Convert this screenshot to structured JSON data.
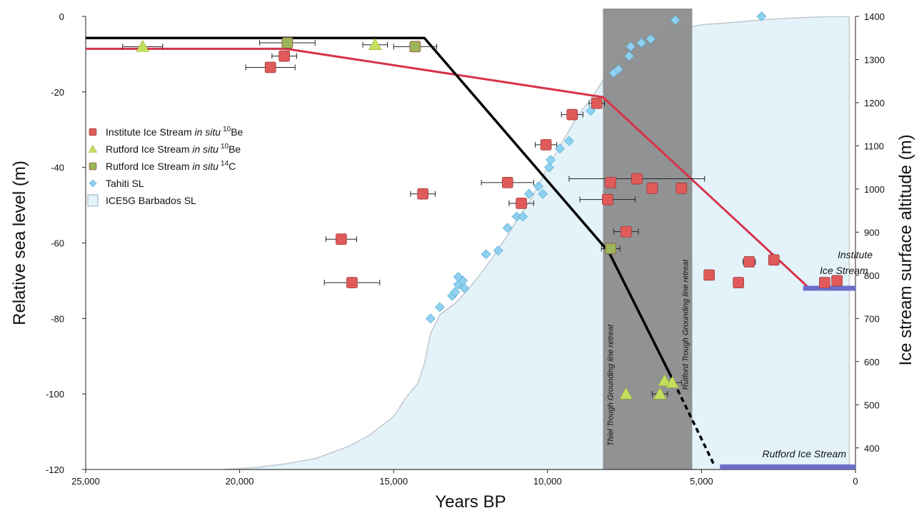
{
  "chart_data": {
    "type": "scatter",
    "xlabel": "Years BP",
    "ylabel": "Relative sea level (m)",
    "y2label": "Ice stream surface altitude (m)",
    "xlim": [
      25000,
      0
    ],
    "ylim": [
      -120,
      0
    ],
    "y2lim": [
      350,
      1400
    ],
    "xticks": [
      25000,
      20000,
      15000,
      10000,
      5000,
      0
    ],
    "xtick_labels": [
      "25,000",
      "20,000",
      "15,000",
      "10,000",
      "5,000",
      "0"
    ],
    "yticks": [
      0,
      -20,
      -40,
      -60,
      -80,
      -100,
      -120
    ],
    "y2ticks": [
      1400,
      1300,
      1200,
      1100,
      1000,
      900,
      800,
      700,
      600,
      500,
      400
    ],
    "legend": {
      "placement": "left",
      "entries": [
        {
          "key": "institute",
          "pre": "Institute Ice Stream ",
          "italic": "in situ",
          "sup": "10",
          "post": "Be"
        },
        {
          "key": "rutford_be",
          "pre": "Rutford Ice Stream ",
          "italic": "in situ",
          "sup": "10",
          "post": "Be"
        },
        {
          "key": "rutford_c",
          "pre": "Rutford Ice Stream ",
          "italic": "in situ",
          "sup": "14",
          "post": "C"
        },
        {
          "key": "tahiti",
          "pre": "Tahiti SL",
          "italic": "",
          "sup": "",
          "post": ""
        },
        {
          "key": "barbados",
          "pre": "ICE5G Barbados SL",
          "italic": "",
          "sup": "",
          "post": ""
        }
      ]
    },
    "colors": {
      "institute": "#e05a5a",
      "institute_line": "#d8334a",
      "rutford_be": "#c4df5c",
      "rutford_c": "#9cb45a",
      "tahiti": "#8fd1ef",
      "barbados_fill": "#e4f3fa",
      "barbados_line": "#c0c7cc",
      "band": "#8a8a8a",
      "rutford_line": "#000000",
      "modern_bar": "#6b6fc9"
    },
    "band": {
      "x_from": 8200,
      "x_to": 5300,
      "labels": [
        "Thiel Trough Grounding line retreat",
        "Rutford Trough Grounding line retreat"
      ]
    },
    "stream_labels": {
      "institute": [
        "Institute",
        "Ice Stream"
      ],
      "rutford": "Rutford Ice Stream"
    },
    "barbados_sl": {
      "x": [
        20500,
        19500,
        18500,
        17500,
        16500,
        15800,
        15000,
        14600,
        14200,
        14000,
        13800,
        13500,
        13000,
        12600,
        12200,
        11800,
        11300,
        11000,
        10500,
        10000,
        9500,
        9000,
        8600,
        8200,
        7800,
        7400,
        7000,
        6500,
        6000,
        5500,
        5000,
        4000,
        3000,
        2000,
        1000,
        200
      ],
      "y": [
        -120,
        -119.5,
        -118.5,
        -117,
        -114,
        -111,
        -106,
        -101,
        -97,
        -92,
        -84,
        -79,
        -76,
        -72.5,
        -68.5,
        -64,
        -58,
        -54,
        -48,
        -40,
        -33,
        -26,
        -22,
        -17,
        -13,
        -10,
        -7.5,
        -5,
        -3.5,
        -3,
        -2.2,
        -1.6,
        -0.9,
        -0.4,
        -0.1,
        -0.1
      ]
    },
    "series": [
      {
        "key": "tahiti",
        "marker": "diamond",
        "points": [
          [
            13800,
            -80
          ],
          [
            13500,
            -77
          ],
          [
            13100,
            -74
          ],
          [
            13000,
            -73
          ],
          [
            12900,
            -71
          ],
          [
            12750,
            -70
          ],
          [
            12900,
            -69
          ],
          [
            12700,
            -72
          ],
          [
            12000,
            -63
          ],
          [
            11600,
            -62
          ],
          [
            11300,
            -56
          ],
          [
            11000,
            -53
          ],
          [
            10800,
            -53
          ],
          [
            10600,
            -47
          ],
          [
            10300,
            -45
          ],
          [
            10150,
            -47
          ],
          [
            9900,
            -38
          ],
          [
            9950,
            -40
          ],
          [
            9600,
            -35
          ],
          [
            9300,
            -33
          ],
          [
            8600,
            -25
          ],
          [
            7850,
            -15
          ],
          [
            7700,
            -14
          ],
          [
            7350,
            -10.5
          ],
          [
            7300,
            -8
          ],
          [
            6950,
            -7
          ],
          [
            6650,
            -6
          ],
          [
            5850,
            -1
          ],
          [
            3050,
            0
          ]
        ]
      },
      {
        "key": "institute",
        "marker": "square",
        "points": [
          {
            "x": 19000,
            "y": -13.5,
            "err": 800
          },
          {
            "x": 18550,
            "y": -10.5,
            "err": 400
          },
          {
            "x": 16700,
            "y": -59,
            "err": 500
          },
          {
            "x": 16350,
            "y": -70.5,
            "err": 900
          },
          {
            "x": 14050,
            "y": -47,
            "err": 400
          },
          {
            "x": 11300,
            "y": -44,
            "err": 850
          },
          {
            "x": 10850,
            "y": -49.5,
            "err": 400
          },
          {
            "x": 10050,
            "y": -34,
            "err": 350
          },
          {
            "x": 9200,
            "y": -26,
            "err": 350
          },
          {
            "x": 8400,
            "y": -23,
            "err": 250
          },
          {
            "x": 8050,
            "y": -48.5,
            "err": 900
          },
          {
            "x": 7950,
            "y": -44,
            "err": 0
          },
          {
            "x": 7450,
            "y": -57,
            "err": 400
          },
          {
            "x": 7100,
            "y": -43,
            "err": 2200
          },
          {
            "x": 6600,
            "y": -45.5,
            "err": 0
          },
          {
            "x": 5650,
            "y": -45.5,
            "err": 0
          },
          {
            "x": 4750,
            "y": -68.5,
            "err": 0
          },
          {
            "x": 3800,
            "y": -70.5,
            "err": 0
          },
          {
            "x": 3450,
            "y": -65,
            "err": 200
          },
          {
            "x": 2650,
            "y": -64.5,
            "err": 0
          },
          {
            "x": 1000,
            "y": -70.5,
            "err": 0
          },
          {
            "x": 600,
            "y": -70,
            "err": 0
          }
        ]
      },
      {
        "key": "rutford_be",
        "marker": "triangle",
        "points": [
          {
            "x": 23150,
            "y": -8,
            "err": 650
          },
          {
            "x": 15600,
            "y": -7.5,
            "err": 400
          },
          {
            "x": 7450,
            "y": -100,
            "err": 0
          },
          {
            "x": 6350,
            "y": -100,
            "err": 250
          },
          {
            "x": 6200,
            "y": -96.5,
            "err": 0
          },
          {
            "x": 5950,
            "y": -97,
            "err": 300
          }
        ]
      },
      {
        "key": "rutford_c",
        "marker": "square",
        "points": [
          {
            "x": 18450,
            "y": -7,
            "err": 900
          },
          {
            "x": 14300,
            "y": -8,
            "err": 700
          },
          {
            "x": 7950,
            "y": -61.5,
            "err": 300
          }
        ]
      }
    ],
    "lines": [
      {
        "key": "institute_line",
        "y_axis": "right",
        "x": [
          25000,
          18500,
          8200,
          1500,
          0
        ],
        "y": [
          1325,
          1325,
          1213,
          770,
          770
        ]
      },
      {
        "key": "rutford_line",
        "y_axis": "right",
        "x": [
          25000,
          14000,
          8000,
          5900
        ],
        "y": [
          1350,
          1350,
          853,
          553
        ]
      },
      {
        "key": "rutford_line_dashed",
        "y_axis": "right",
        "x": [
          5900,
          4600
        ],
        "y": [
          553,
          362
        ],
        "dashed": true
      },
      {
        "key": "rutford_modern",
        "y_axis": "right",
        "x": [
          4400,
          0
        ],
        "y": [
          356,
          356
        ],
        "thick": true
      },
      {
        "key": "institute_modern",
        "y_axis": "right",
        "x": [
          1700,
          0
        ],
        "y": [
          770,
          770
        ],
        "thick": true
      }
    ]
  }
}
